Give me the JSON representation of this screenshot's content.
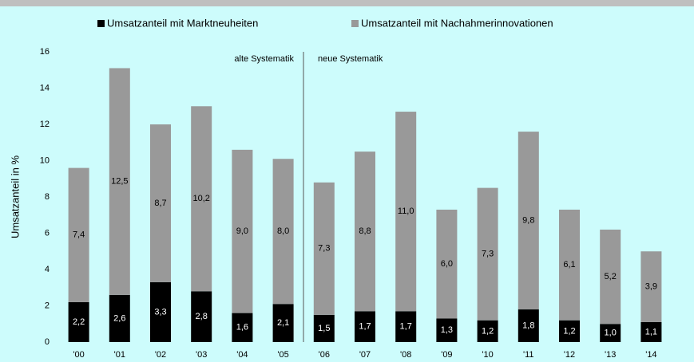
{
  "chart_data": {
    "type": "stacked_bar",
    "categories": [
      "'00",
      "'01",
      "'02",
      "'03",
      "'04",
      "'05",
      "'06",
      "'07",
      "'08",
      "'09",
      "'10",
      "'11",
      "'12",
      "'13",
      "'14"
    ],
    "series": [
      {
        "name": "Umsatzanteil mit Marktneuheiten",
        "color": "#000000",
        "values": [
          2.2,
          2.6,
          3.3,
          2.8,
          1.6,
          2.1,
          1.5,
          1.7,
          1.7,
          1.3,
          1.2,
          1.8,
          1.2,
          1.0,
          1.1
        ],
        "value_labels": [
          "2,2",
          "2,6",
          "3,3",
          "2,8",
          "1,6",
          "2,1",
          "1,5",
          "1,7",
          "1,7",
          "1,3",
          "1,2",
          "1,8",
          "1,2",
          "1,0",
          "1,1"
        ]
      },
      {
        "name": "Umsatzanteil mit Nachahmerinnovationen",
        "color": "#999999",
        "values": [
          7.4,
          12.5,
          8.7,
          10.2,
          9.0,
          8.0,
          7.3,
          8.8,
          11.0,
          6.0,
          7.3,
          9.8,
          6.1,
          5.2,
          3.9
        ],
        "value_labels": [
          "7,4",
          "12,5",
          "8,7",
          "10,2",
          "9,0",
          "8,0",
          "7,3",
          "8,8",
          "11,0",
          "6,0",
          "7,3",
          "9,8",
          "6,1",
          "5,2",
          "3,9"
        ]
      }
    ],
    "y_label": "Umsatzanteil in %",
    "annotations": [
      "alte Systematik",
      "neue Systematik"
    ],
    "ylim": [
      0,
      16
    ],
    "yticks": [
      0,
      2,
      4,
      6,
      8,
      10,
      12,
      14,
      16
    ],
    "grid": false,
    "legend": "top"
  }
}
